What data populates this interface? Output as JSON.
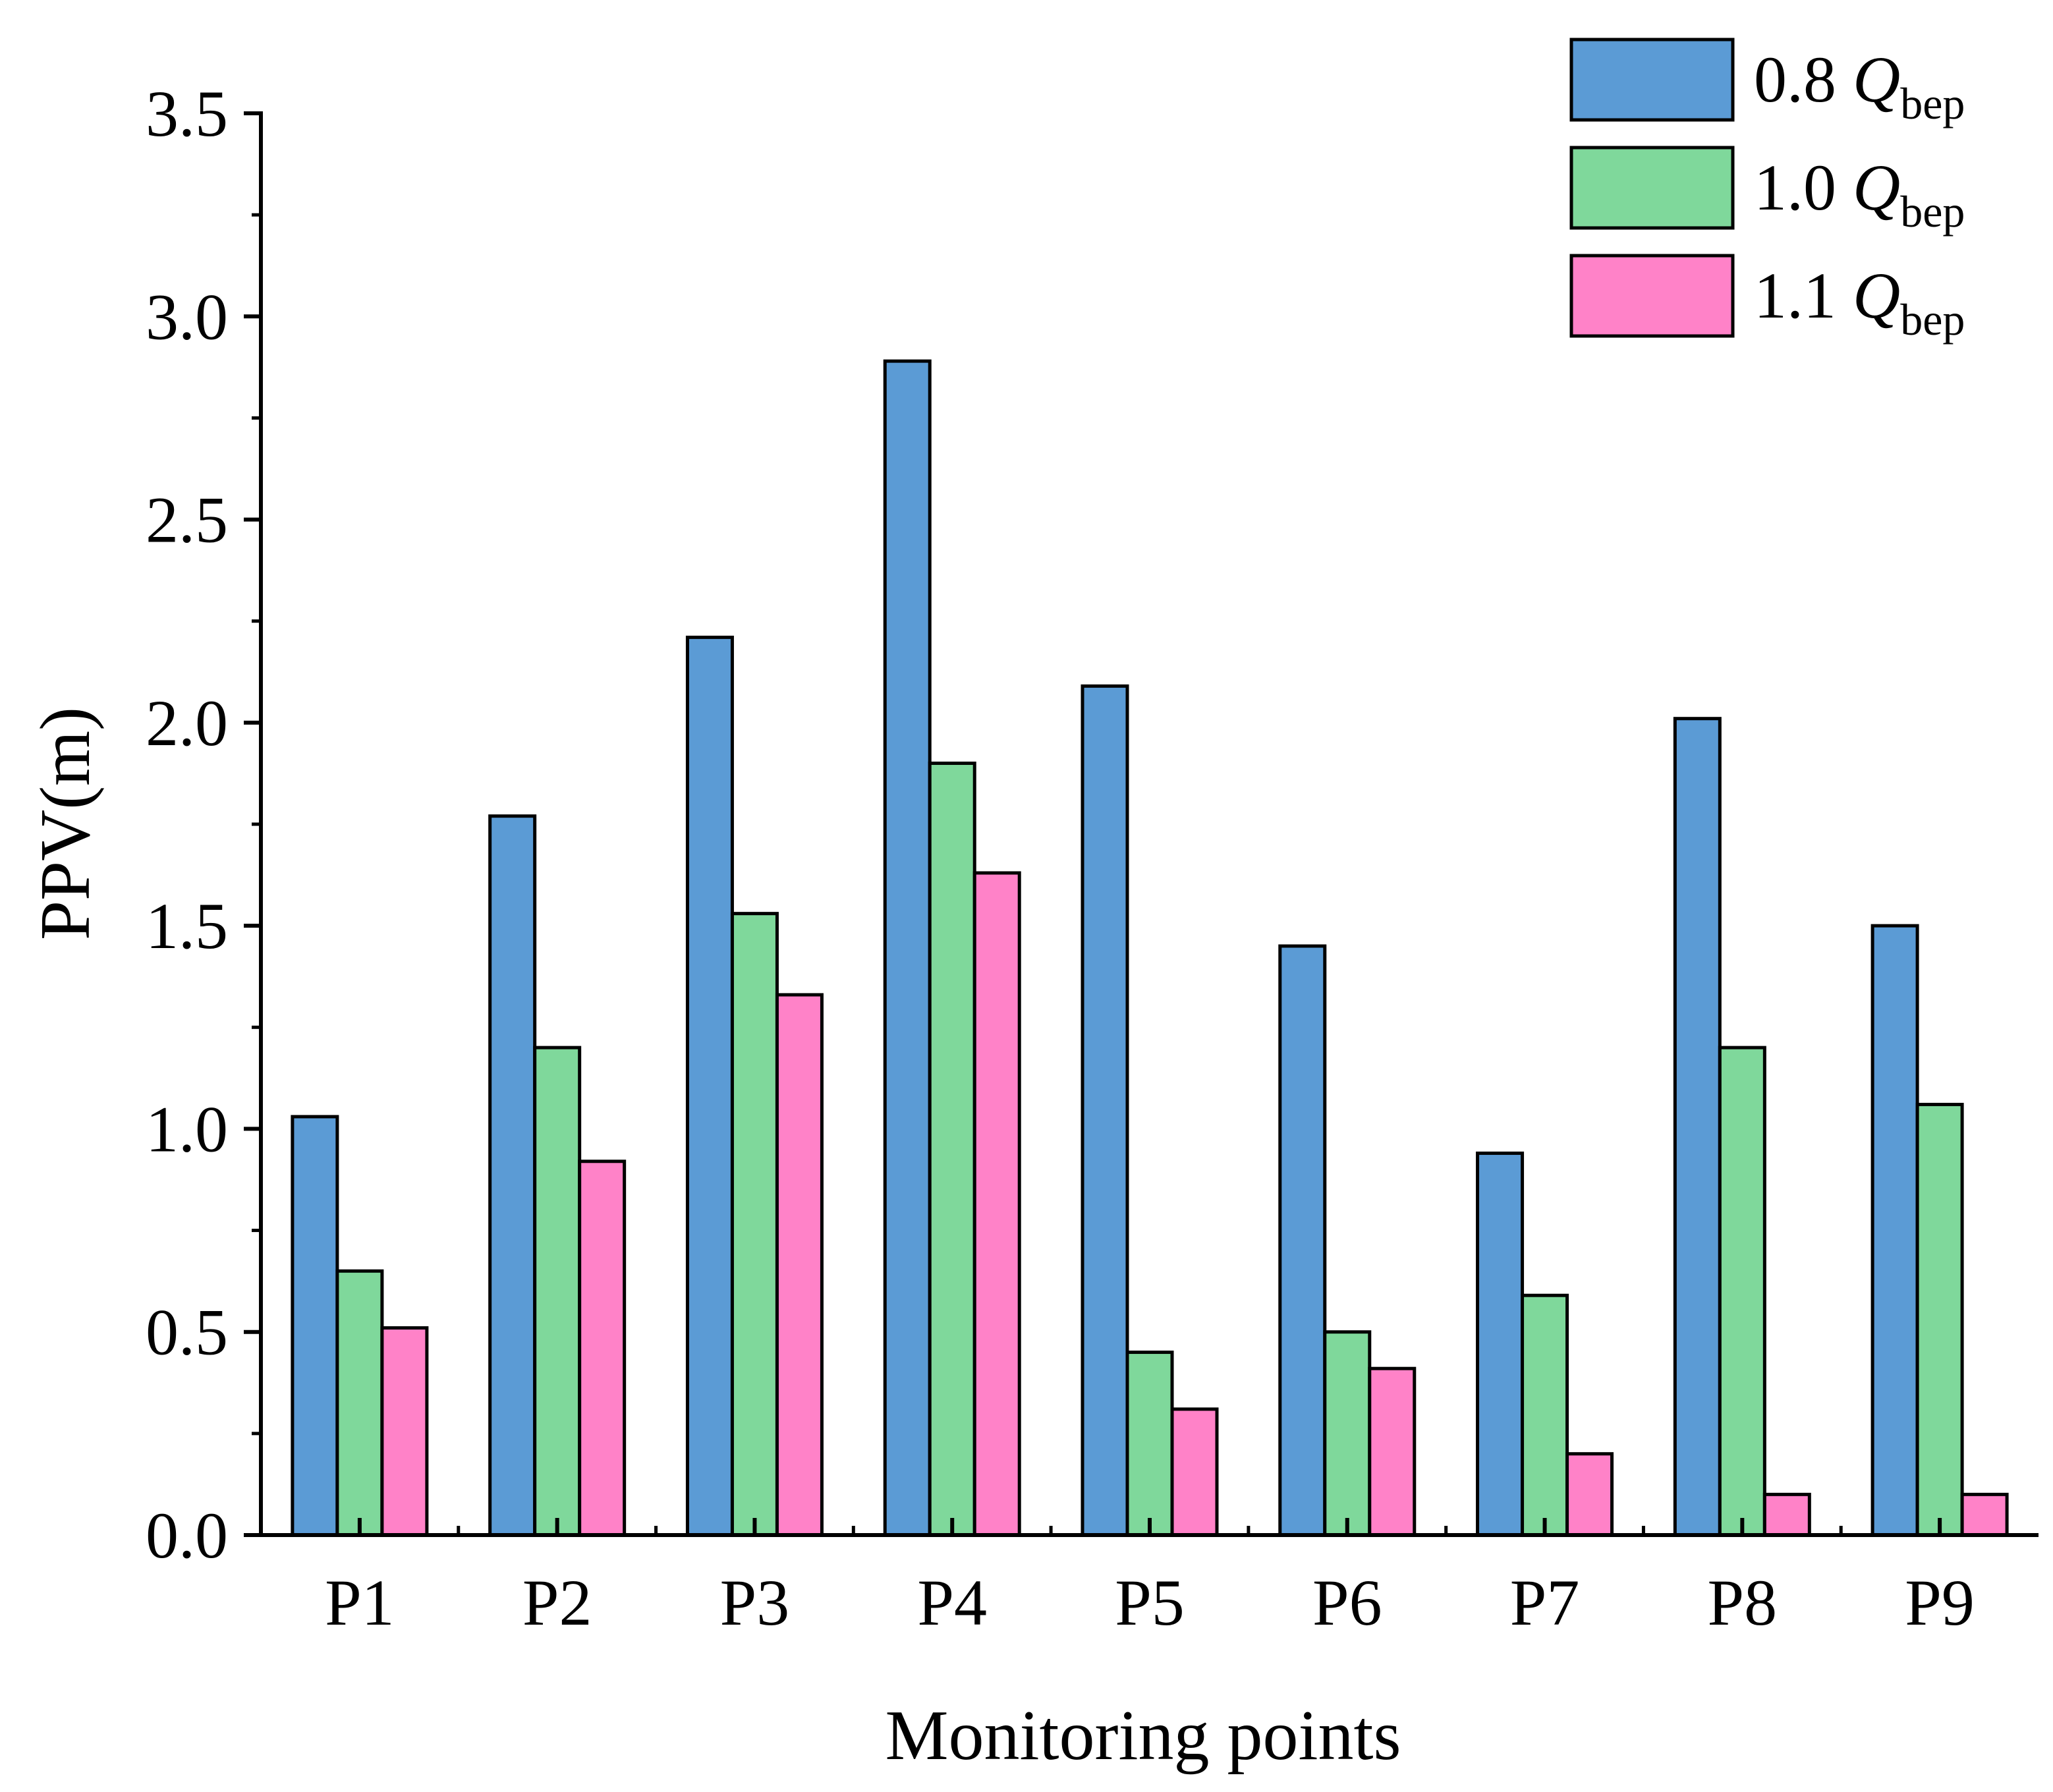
{
  "chart_data": {
    "type": "bar",
    "title": "",
    "xlabel": "Monitoring points",
    "ylabel": "PPV(m)",
    "ylim": [
      0,
      3.5
    ],
    "ytick_step": 0.5,
    "yticks": [
      "0.0",
      "0.5",
      "1.0",
      "1.5",
      "2.0",
      "2.5",
      "3.0",
      "3.5"
    ],
    "categories": [
      "P1",
      "P2",
      "P3",
      "P4",
      "P5",
      "P6",
      "P7",
      "P8",
      "P9"
    ],
    "legend_position": "top-right",
    "series": [
      {
        "name": "0.8 Q",
        "subscript": "bep",
        "color": "#5b9bd5",
        "values": [
          1.03,
          1.77,
          2.21,
          2.89,
          2.09,
          1.45,
          0.94,
          2.01,
          1.5
        ]
      },
      {
        "name": "1.0 Q",
        "subscript": "bep",
        "color": "#7fd89b",
        "values": [
          0.65,
          1.2,
          1.53,
          1.9,
          0.45,
          0.5,
          0.59,
          1.2,
          1.06
        ]
      },
      {
        "name": "1.1 Q",
        "subscript": "bep",
        "color": "#ff82c8",
        "values": [
          0.51,
          0.92,
          1.33,
          1.63,
          0.31,
          0.41,
          0.2,
          0.1,
          0.1
        ]
      }
    ]
  }
}
